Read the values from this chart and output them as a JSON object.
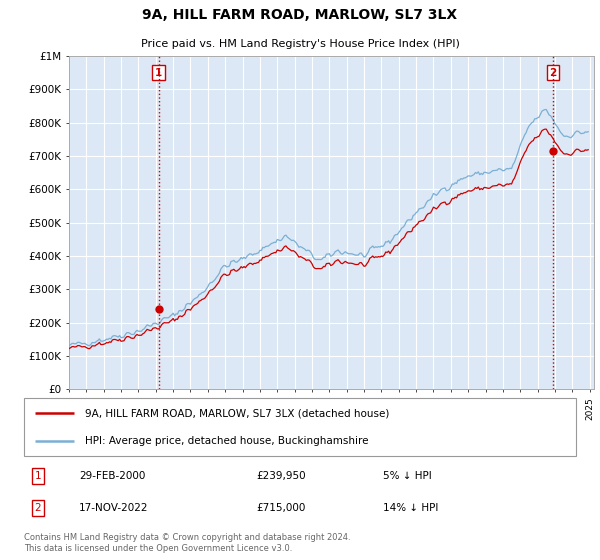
{
  "title": "9A, HILL FARM ROAD, MARLOW, SL7 3LX",
  "subtitle": "Price paid vs. HM Land Registry's House Price Index (HPI)",
  "ylabel_ticks": [
    "£0",
    "£100K",
    "£200K",
    "£300K",
    "£400K",
    "£500K",
    "£600K",
    "£700K",
    "£800K",
    "£900K",
    "£1M"
  ],
  "ytick_values": [
    0,
    100000,
    200000,
    300000,
    400000,
    500000,
    600000,
    700000,
    800000,
    900000,
    1000000
  ],
  "ylim": [
    0,
    1000000
  ],
  "xlim_start": 1995.0,
  "xlim_end": 2025.25,
  "background_color": "#ffffff",
  "plot_bg_color": "#dce8f5",
  "grid_color": "#ffffff",
  "hpi_color": "#7bafd4",
  "price_color": "#cc0000",
  "vline_color": "#cc0000",
  "vline_style": ":",
  "marker_color": "#cc0000",
  "marker_size": 6,
  "transaction1_x": 2000.16,
  "transaction1_y": 239950,
  "transaction2_x": 2022.88,
  "transaction2_y": 715000,
  "legend_label_price": "9A, HILL FARM ROAD, MARLOW, SL7 3LX (detached house)",
  "legend_label_hpi": "HPI: Average price, detached house, Buckinghamshire",
  "ann1_label": "1",
  "ann1_date": "29-FEB-2000",
  "ann1_price": "£239,950",
  "ann1_hpi": "5% ↓ HPI",
  "ann2_label": "2",
  "ann2_date": "17-NOV-2022",
  "ann2_price": "£715,000",
  "ann2_hpi": "14% ↓ HPI",
  "footer": "Contains HM Land Registry data © Crown copyright and database right 2024.\nThis data is licensed under the Open Government Licence v3.0."
}
